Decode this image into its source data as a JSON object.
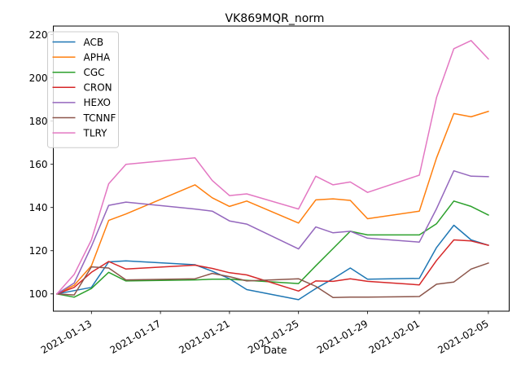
{
  "chart_data": {
    "type": "line",
    "title": "VK869MQR_norm",
    "xlabel": "Date",
    "ylabel": "",
    "ylim": [
      92,
      224
    ],
    "xlim": [
      "2021-01-10T19:00",
      "2021-02-06T05:00"
    ],
    "yticks": [
      100,
      120,
      140,
      160,
      180,
      200,
      220
    ],
    "xticks": [
      "2021-01-13",
      "2021-01-17",
      "2021-01-21",
      "2021-01-25",
      "2021-01-29",
      "2021-02-01",
      "2021-02-05"
    ],
    "grid": false,
    "legend_position": "upper left",
    "x": [
      "2021-01-11",
      "2021-01-12",
      "2021-01-13",
      "2021-01-14",
      "2021-01-15",
      "2021-01-19",
      "2021-01-20",
      "2021-01-21",
      "2021-01-22",
      "2021-01-25",
      "2021-01-26",
      "2021-01-27",
      "2021-01-28",
      "2021-01-29",
      "2021-02-01",
      "2021-02-02",
      "2021-02-03",
      "2021-02-04",
      "2021-02-05"
    ],
    "series": [
      {
        "name": "ACB",
        "color": "#1f77b4",
        "values": [
          100.0,
          101.5,
          103.0,
          114.8,
          115.3,
          113.5,
          110.5,
          107.0,
          102.0,
          97.3,
          102.5,
          107.0,
          112.0,
          106.8,
          107.2,
          121.5,
          131.8,
          125.0,
          122.5
        ]
      },
      {
        "name": "APHA",
        "color": "#ff7f0e",
        "values": [
          100.0,
          104.0,
          113.0,
          134.0,
          137.0,
          150.5,
          144.5,
          140.5,
          143.0,
          132.8,
          143.5,
          144.0,
          143.3,
          134.8,
          138.3,
          163.0,
          183.5,
          182.0,
          184.5
        ]
      },
      {
        "name": "CGC",
        "color": "#2ca02c",
        "values": [
          100.0,
          98.5,
          102.5,
          110.0,
          106.0,
          106.5,
          106.8,
          106.8,
          106.3,
          104.8,
          113.0,
          121.0,
          129.0,
          127.3,
          127.3,
          132.5,
          143.0,
          140.5,
          136.5
        ]
      },
      {
        "name": "CRON",
        "color": "#d62728",
        "values": [
          100.0,
          103.0,
          110.0,
          115.0,
          111.5,
          113.3,
          111.8,
          109.8,
          108.8,
          101.3,
          106.0,
          105.8,
          107.0,
          105.8,
          104.2,
          115.5,
          125.0,
          124.5,
          122.5
        ]
      },
      {
        "name": "HEXO",
        "color": "#9467bd",
        "values": [
          100.0,
          105.0,
          122.0,
          141.0,
          142.5,
          139.3,
          138.3,
          133.8,
          132.3,
          120.8,
          131.0,
          128.3,
          129.0,
          125.8,
          124.0,
          139.5,
          157.0,
          154.5,
          154.3
        ]
      },
      {
        "name": "TCNNF",
        "color": "#8c564b",
        "values": [
          100.0,
          99.5,
          112.5,
          112.0,
          106.5,
          107.0,
          109.5,
          108.0,
          106.0,
          107.0,
          103.5,
          98.3,
          98.5,
          98.5,
          98.8,
          104.5,
          105.5,
          111.5,
          114.3
        ]
      },
      {
        "name": "TLRY",
        "color": "#e377c2",
        "values": [
          100.0,
          109.0,
          125.0,
          151.0,
          160.0,
          163.0,
          152.5,
          145.5,
          146.3,
          139.3,
          154.5,
          150.5,
          151.8,
          147.0,
          155.0,
          191.0,
          213.5,
          217.3,
          208.8
        ]
      }
    ]
  }
}
